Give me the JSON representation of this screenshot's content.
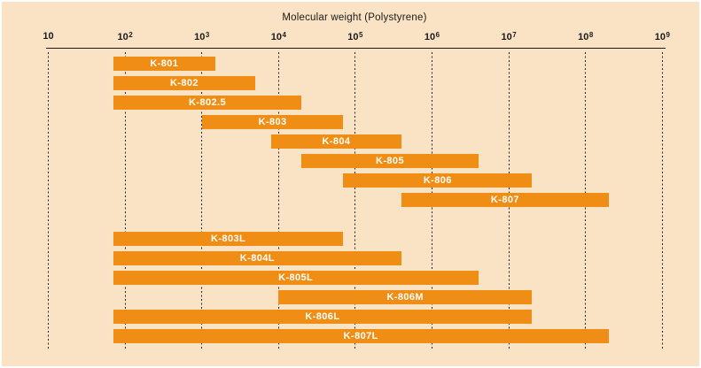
{
  "colors": {
    "background": "#fae3c4",
    "bar": "#ef8d14",
    "axis": "#1a1a1a",
    "bar_label_text": "#ffffff",
    "outer_border": "#ffffff"
  },
  "chart_data": {
    "type": "bar",
    "subtype": "horizontal-range-bars",
    "title": "Molecular weight (Polystyrene)",
    "x_axis": {
      "label": "Molecular weight (Polystyrene)",
      "scale": "log10",
      "min": 10,
      "max": 1000000000,
      "tick_exponents": [
        1,
        2,
        3,
        4,
        5,
        6,
        7,
        8,
        9
      ],
      "tick_labels": [
        "10",
        "10^2",
        "10^3",
        "10^4",
        "10^5",
        "10^6",
        "10^7",
        "10^8",
        "10^9"
      ]
    },
    "grid": "dashed-vertical",
    "legend": "none",
    "series": [
      {
        "label": "K-801",
        "mw_min": 70,
        "mw_max": 1500,
        "group": 1
      },
      {
        "label": "K-802",
        "mw_min": 70,
        "mw_max": 5000,
        "group": 1
      },
      {
        "label": "K-802.5",
        "mw_min": 70,
        "mw_max": 20000,
        "group": 1
      },
      {
        "label": "K-803",
        "mw_min": 1000,
        "mw_max": 70000,
        "group": 1
      },
      {
        "label": "K-804",
        "mw_min": 8000,
        "mw_max": 400000,
        "group": 1
      },
      {
        "label": "K-805",
        "mw_min": 20000,
        "mw_max": 4000000,
        "group": 1
      },
      {
        "label": "K-806",
        "mw_min": 70000,
        "mw_max": 20000000,
        "group": 1
      },
      {
        "label": "K-807",
        "mw_min": 400000,
        "mw_max": 200000000,
        "group": 1
      },
      {
        "label": "K-803L",
        "mw_min": 70,
        "mw_max": 70000,
        "group": 2
      },
      {
        "label": "K-804L",
        "mw_min": 70,
        "mw_max": 400000,
        "group": 2
      },
      {
        "label": "K-805L",
        "mw_min": 70,
        "mw_max": 4000000,
        "group": 2
      },
      {
        "label": "K-806M",
        "mw_min": 10000,
        "mw_max": 20000000,
        "group": 2
      },
      {
        "label": "K-806L",
        "mw_min": 70,
        "mw_max": 20000000,
        "group": 2
      },
      {
        "label": "K-807L",
        "mw_min": 70,
        "mw_max": 200000000,
        "group": 2
      }
    ]
  }
}
